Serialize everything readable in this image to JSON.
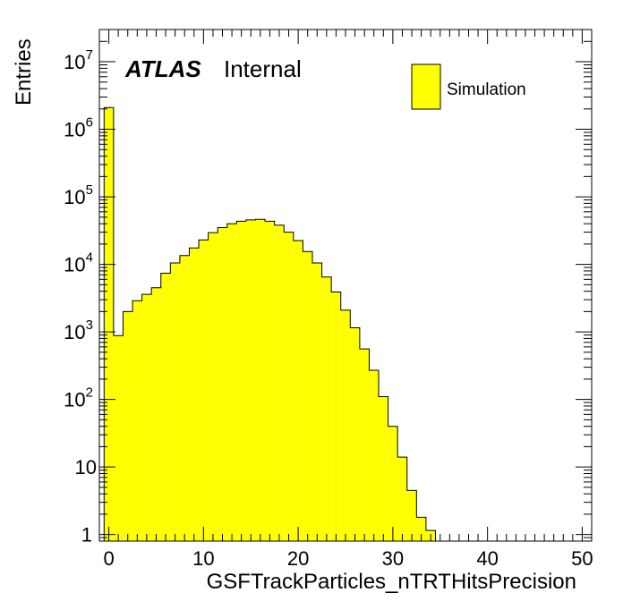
{
  "chart_data": {
    "type": "bar",
    "xlabel": "GSFTrackParticles_nTRTHitsPrecision",
    "ylabel": "Entries",
    "xlim": [
      -1,
      51
    ],
    "ylim": [
      0.8,
      30000000
    ],
    "log_y": true,
    "grid": false,
    "x_ticks": [
      {
        "value": 0,
        "label": "0"
      },
      {
        "value": 10,
        "label": "10"
      },
      {
        "value": 20,
        "label": "20"
      },
      {
        "value": 30,
        "label": "30"
      },
      {
        "value": 40,
        "label": "40"
      },
      {
        "value": 50,
        "label": "50"
      }
    ],
    "y_ticks": [
      {
        "value": 1,
        "base": "1",
        "exp": ""
      },
      {
        "value": 10,
        "base": "10",
        "exp": ""
      },
      {
        "value": 100,
        "base": "10",
        "exp": "2"
      },
      {
        "value": 1000,
        "base": "10",
        "exp": "3"
      },
      {
        "value": 10000,
        "base": "10",
        "exp": "4"
      },
      {
        "value": 100000,
        "base": "10",
        "exp": "5"
      },
      {
        "value": 1000000,
        "base": "10",
        "exp": "6"
      },
      {
        "value": 10000000,
        "base": "10",
        "exp": "7"
      }
    ],
    "bin_width": 1,
    "bin_start": -0.5,
    "values": [
      2100000,
      880,
      2000,
      2900,
      3600,
      4500,
      7400,
      10500,
      13500,
      17500,
      23000,
      29500,
      35000,
      40000,
      43500,
      45500,
      46500,
      43500,
      38000,
      30000,
      22500,
      15500,
      10500,
      6500,
      3900,
      2100,
      1150,
      560,
      270,
      110,
      40,
      14,
      4.5,
      1.8,
      1.15
    ],
    "label_main": "ATLAS",
    "label_sub": "Internal",
    "legend": {
      "position": "top-right",
      "entries": [
        {
          "label": "Simulation",
          "color": "#ffff00"
        }
      ]
    },
    "fill_color": "#ffff00",
    "line_color": "#000000"
  }
}
